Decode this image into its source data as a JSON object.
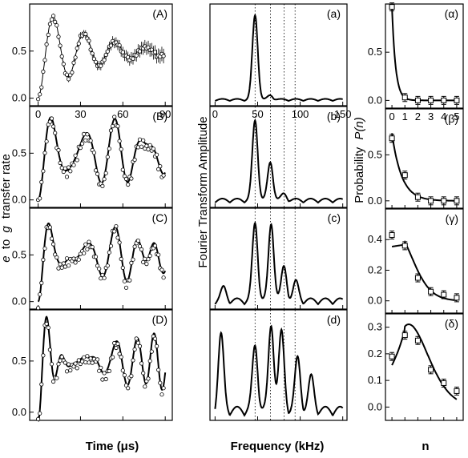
{
  "figure": {
    "left_ylabel_italic_e": "e",
    "left_ylabel_to": "to",
    "left_ylabel_italic_g": "g",
    "left_ylabel_rest": "transfer rate",
    "middle_ylabel": "Fourier Transform Amplitude",
    "right_ylabel_text": "Probability",
    "right_ylabel_italic": "P(n)",
    "left_xlabel": "Time (μs)",
    "middle_xlabel": "Frequency (kHz)",
    "right_xlabel": "n"
  },
  "chart_data": [
    {
      "type": "line",
      "panel": "(A)",
      "xlim": [
        -6,
        95
      ],
      "ylim": [
        -0.08,
        1.0
      ],
      "xticks": [
        "0",
        "30",
        "60",
        "90"
      ],
      "yticks": [
        "0.0",
        "0.5"
      ],
      "grid": false,
      "model": {
        "kind": "damped_cosine",
        "omega_kHz": 46,
        "tau_us": 35,
        "offset": 0.5,
        "amplitude": 0.5
      },
      "data_points": "open circles with error bars (denser at late times)"
    },
    {
      "type": "line",
      "panel": "(B)",
      "xlim": [
        -6,
        95
      ],
      "ylim": [
        -0.08,
        1.0
      ],
      "xticks": [],
      "yticks": [
        "0.0",
        "0.5"
      ],
      "model": {
        "kind": "multi_component",
        "weights": [
          0.63,
          0.3,
          0.06,
          0.01
        ],
        "freqs_kHz": [
          46,
          65,
          80,
          92
        ],
        "offset": 0.5
      }
    },
    {
      "type": "line",
      "panel": "(C)",
      "xlim": [
        -6,
        95
      ],
      "ylim": [
        -0.08,
        1.0
      ],
      "xticks": [],
      "yticks": [
        "0.0",
        "0.5"
      ],
      "model": {
        "kind": "multi_component",
        "weights": [
          0.37,
          0.36,
          0.16,
          0.06,
          0.03,
          0.02
        ],
        "freqs_kHz": [
          46,
          65,
          80,
          92,
          103,
          113
        ],
        "offset": 0.5
      }
    },
    {
      "type": "line",
      "panel": "(D)",
      "xlim": [
        -6,
        95
      ],
      "ylim": [
        -0.08,
        1.0
      ],
      "xticks": [],
      "yticks": [
        "0.0",
        "0.5"
      ],
      "model": {
        "kind": "multi_component",
        "weights": [
          0.17,
          0.26,
          0.31,
          0.24,
          0.14,
          0.06
        ],
        "freqs_kHz": [
          46,
          65,
          80,
          92,
          103,
          113
        ],
        "offset": 0.5
      }
    },
    {
      "type": "line",
      "panel": "(a)",
      "xlim": [
        -6,
        155
      ],
      "xticks": [
        "0",
        "50",
        "100",
        "150"
      ],
      "peaks": [
        {
          "x": 47,
          "y": 1.0
        },
        {
          "x": 65,
          "y": 0.05
        }
      ],
      "dotted_lines_kHz": [
        47,
        65,
        81,
        94
      ]
    },
    {
      "type": "line",
      "panel": "(b)",
      "xlim": [
        -6,
        155
      ],
      "peaks": [
        {
          "x": 47,
          "y": 0.95
        },
        {
          "x": 65,
          "y": 0.45
        },
        {
          "x": 81,
          "y": 0.07
        }
      ]
    },
    {
      "type": "line",
      "panel": "(c)",
      "xlim": [
        -6,
        155
      ],
      "peaks": [
        {
          "x": 47,
          "y": 0.92
        },
        {
          "x": 66,
          "y": 0.92
        },
        {
          "x": 81,
          "y": 0.4
        },
        {
          "x": 95,
          "y": 0.22
        },
        {
          "x": 10,
          "y": 0.15
        }
      ]
    },
    {
      "type": "line",
      "panel": "(d)",
      "xlim": [
        -6,
        155
      ],
      "peaks": [
        {
          "x": 7,
          "y": 0.8
        },
        {
          "x": 47,
          "y": 0.68
        },
        {
          "x": 66,
          "y": 0.91
        },
        {
          "x": 78,
          "y": 0.83
        },
        {
          "x": 97,
          "y": 0.55
        },
        {
          "x": 113,
          "y": 0.35
        }
      ]
    },
    {
      "type": "scatter",
      "panel": "(α)",
      "xlim": [
        -0.5,
        5.5
      ],
      "ylim": [
        -0.08,
        1.0
      ],
      "xticks": [
        "0",
        "1",
        "2",
        "3",
        "4",
        "5"
      ],
      "yticks": [
        "0.0",
        "0.5"
      ],
      "x": [
        0,
        1,
        2,
        3,
        4,
        5
      ],
      "y": [
        0.97,
        0.03,
        0.0,
        0.0,
        0.0,
        0.0
      ],
      "fit": "thermal"
    },
    {
      "type": "scatter",
      "panel": "(β)",
      "xlim": [
        -0.5,
        5.5
      ],
      "ylim": [
        -0.08,
        1.0
      ],
      "yticks": [
        "0.0",
        "0.5"
      ],
      "x": [
        0,
        1,
        2,
        3,
        4,
        5
      ],
      "y": [
        0.68,
        0.28,
        0.04,
        0.0,
        0.0,
        0.0
      ],
      "fit": "thermal"
    },
    {
      "type": "scatter",
      "panel": "(γ)",
      "xlim": [
        -0.5,
        5.5
      ],
      "ylim": [
        -0.08,
        0.6
      ],
      "yticks": [
        "0.0",
        "0.2",
        "0.4"
      ],
      "x": [
        0,
        1,
        2,
        3,
        4,
        5
      ],
      "y": [
        0.43,
        0.36,
        0.15,
        0.06,
        0.04,
        0.02
      ],
      "fit": "coherent"
    },
    {
      "type": "scatter",
      "panel": "(δ)",
      "xlim": [
        -0.5,
        5.5
      ],
      "ylim": [
        -0.05,
        0.35
      ],
      "yticks": [
        "0.0",
        "0.1",
        "0.2",
        "0.3"
      ],
      "x": [
        0,
        1,
        2,
        3,
        4,
        5
      ],
      "y": [
        0.19,
        0.27,
        0.25,
        0.14,
        0.09,
        0.06
      ],
      "fit": "coherent"
    }
  ]
}
